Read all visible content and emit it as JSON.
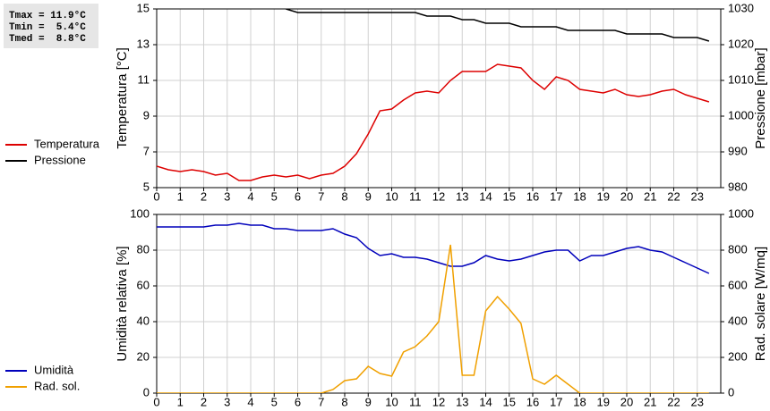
{
  "stats": [
    "Tmax = 11.9°C",
    "Tmin =  5.4°C",
    "Tmed =  8.8°C"
  ],
  "chart_data": [
    {
      "type": "line",
      "x": [
        0,
        0.5,
        1,
        1.5,
        2,
        2.5,
        3,
        3.5,
        4,
        4.5,
        5,
        5.5,
        6,
        6.5,
        7,
        7.5,
        8,
        8.5,
        9,
        9.5,
        10,
        10.5,
        11,
        11.5,
        12,
        12.5,
        13,
        13.5,
        14,
        14.5,
        15,
        15.5,
        16,
        16.5,
        17,
        17.5,
        18,
        18.5,
        19,
        19.5,
        20,
        20.5,
        21,
        21.5,
        22,
        22.5,
        23,
        23.5
      ],
      "xlim": [
        0,
        24
      ],
      "xticks": [
        0,
        1,
        2,
        3,
        4,
        5,
        6,
        7,
        8,
        9,
        10,
        11,
        12,
        13,
        14,
        15,
        16,
        17,
        18,
        19,
        20,
        21,
        22,
        23
      ],
      "ylim": [
        5,
        15
      ],
      "yticks": [
        5,
        7,
        9,
        11,
        13,
        15
      ],
      "y2lim": [
        980,
        1030
      ],
      "y2ticks": [
        980,
        990,
        1000,
        1010,
        1020,
        1030
      ],
      "ylabel": "Temperatura [°C]",
      "y2label": "Pressione [mbar]",
      "grid": true,
      "series": [
        {
          "name": "Temperatura",
          "color": "#dd0000",
          "values": [
            6.2,
            6.0,
            5.9,
            6.0,
            5.9,
            5.7,
            5.8,
            5.4,
            5.4,
            5.6,
            5.7,
            5.6,
            5.7,
            5.5,
            5.7,
            5.8,
            6.2,
            6.9,
            8.0,
            9.3,
            9.4,
            9.9,
            10.3,
            10.4,
            10.3,
            11.0,
            11.5,
            11.5,
            11.5,
            11.9,
            11.8,
            11.7,
            11.0,
            10.5,
            11.2,
            11.0,
            10.5,
            10.4,
            10.3,
            10.5,
            10.2,
            10.1,
            10.2,
            10.4,
            10.5,
            10.2,
            10.0,
            9.8
          ]
        },
        {
          "name": "Pressione",
          "color": "#000000",
          "axis": "y2",
          "values": [
            null,
            null,
            null,
            null,
            null,
            null,
            null,
            null,
            null,
            null,
            null,
            1030,
            1029,
            1029,
            1029,
            1029,
            1029,
            1029,
            1029,
            1029,
            1029,
            1029,
            1029,
            1028,
            1028,
            1028,
            1027,
            1027,
            1026,
            1026,
            1026,
            1025,
            1025,
            1025,
            1025,
            1024,
            1024,
            1024,
            1024,
            1024,
            1023,
            1023,
            1023,
            1023,
            1022,
            1022,
            1022,
            1021
          ]
        }
      ]
    },
    {
      "type": "line",
      "x": [
        0,
        0.5,
        1,
        1.5,
        2,
        2.5,
        3,
        3.5,
        4,
        4.5,
        5,
        5.5,
        6,
        6.5,
        7,
        7.5,
        8,
        8.5,
        9,
        9.5,
        10,
        10.5,
        11,
        11.5,
        12,
        12.5,
        13,
        13.5,
        14,
        14.5,
        15,
        15.5,
        16,
        16.5,
        17,
        17.5,
        18,
        18.5,
        19,
        19.5,
        20,
        20.5,
        21,
        21.5,
        22,
        22.5,
        23,
        23.5
      ],
      "xlim": [
        0,
        24
      ],
      "xticks": [
        0,
        1,
        2,
        3,
        4,
        5,
        6,
        7,
        8,
        9,
        10,
        11,
        12,
        13,
        14,
        15,
        16,
        17,
        18,
        19,
        20,
        21,
        22,
        23
      ],
      "ylim": [
        0,
        100
      ],
      "yticks": [
        0,
        20,
        40,
        60,
        80,
        100
      ],
      "y2lim": [
        0,
        1000
      ],
      "y2ticks": [
        0,
        200,
        400,
        600,
        800,
        1000
      ],
      "ylabel": "Umidità relativa [%]",
      "y2label": "Rad. solare [W/mq]",
      "grid": true,
      "series": [
        {
          "name": "Umidità",
          "color": "#0000bb",
          "values": [
            93,
            93,
            93,
            93,
            93,
            94,
            94,
            95,
            94,
            94,
            92,
            92,
            91,
            91,
            91,
            92,
            89,
            87,
            81,
            77,
            78,
            76,
            76,
            75,
            73,
            71,
            71,
            73,
            77,
            75,
            74,
            75,
            77,
            79,
            80,
            80,
            74,
            77,
            77,
            79,
            81,
            82,
            80,
            79,
            76,
            73,
            70,
            67
          ]
        },
        {
          "name": "Rad. sol.",
          "color": "#f0a000",
          "axis": "y2",
          "values": [
            0,
            0,
            0,
            0,
            0,
            0,
            0,
            0,
            0,
            0,
            0,
            0,
            0,
            0,
            0,
            20,
            70,
            80,
            150,
            110,
            95,
            230,
            260,
            320,
            400,
            830,
            100,
            100,
            460,
            540,
            470,
            390,
            80,
            50,
            100,
            50,
            0,
            0,
            0,
            0,
            0,
            0,
            0,
            0,
            0,
            0,
            0,
            0
          ]
        }
      ]
    }
  ]
}
